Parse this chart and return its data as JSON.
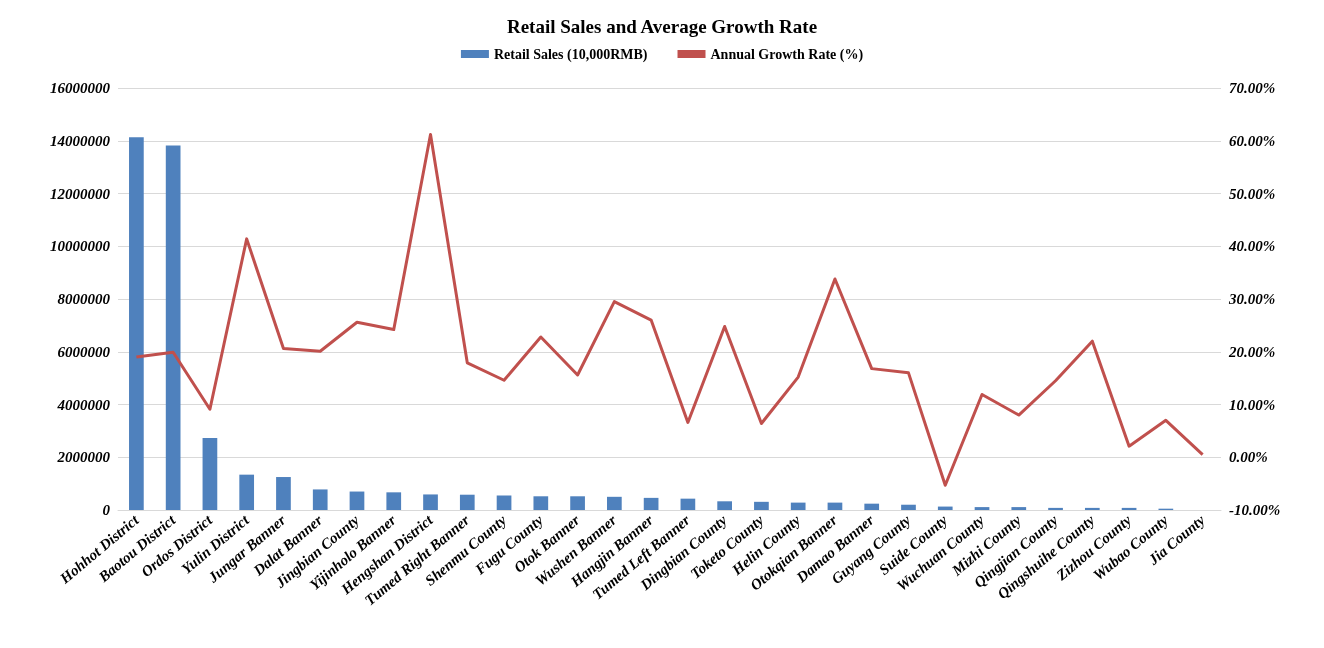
{
  "chart_data": {
    "type": "bar",
    "title": "Retail Sales and Average Growth Rate",
    "categories": [
      "Hohhot District",
      "Baotou District",
      "Ordos District",
      "Yulin District",
      "Jungar Banner",
      "Dalat Banner",
      "Jingbian County",
      "Yijinholo Banner",
      "Hengshan District",
      "Tumed Right Banner",
      "Shenmu County",
      "Fugu County",
      "Otok Banner",
      "Wushen Banner",
      "Hangjin Banner",
      "Tumed Left Banner",
      "Dingbian County",
      "Toketo County",
      "Helin County",
      "Otokqian Banner",
      "Damao Banner",
      "Guyang County",
      "Suide County",
      "Wuchuan County",
      "Mizhi County",
      "Qingjian County",
      "Qingshuihe County",
      "Zizhou County",
      "Wubao County",
      "Jia County"
    ],
    "series": [
      {
        "name": "Retail Sales (10,000RMB)",
        "color": "#4f81bd",
        "values": [
          14130000,
          13820000,
          2730000,
          1340000,
          1250000,
          780000,
          700000,
          670000,
          590000,
          580000,
          550000,
          520000,
          520000,
          500000,
          460000,
          430000,
          330000,
          310000,
          280000,
          280000,
          240000,
          200000,
          130000,
          110000,
          110000,
          80000,
          80000,
          80000,
          50000,
          null
        ]
      },
      {
        "name": "Annual Growth Rate (%)",
        "type": "line",
        "axis": "y2",
        "color": "#c0504d",
        "values": [
          19.0,
          19.9,
          9.1,
          41.4,
          20.6,
          20.1,
          25.6,
          24.2,
          61.2,
          17.9,
          14.6,
          22.8,
          15.6,
          29.5,
          26.0,
          6.6,
          24.8,
          6.4,
          15.2,
          33.8,
          16.8,
          16.0,
          -5.3,
          11.9,
          8.0,
          14.5,
          22.0,
          2.1,
          7.0,
          0.5
        ]
      }
    ],
    "ylim": [
      0,
      16000000
    ],
    "yticks": [
      0,
      2000000,
      4000000,
      6000000,
      8000000,
      10000000,
      12000000,
      14000000,
      16000000
    ],
    "y2lim": [
      -10,
      70
    ],
    "y2ticks": [
      {
        "value": -10,
        "label": "-10.00%"
      },
      {
        "value": 0,
        "label": "0.00%"
      },
      {
        "value": 10,
        "label": "10.00%"
      },
      {
        "value": 20,
        "label": "20.00%"
      },
      {
        "value": 30,
        "label": "30.00%"
      },
      {
        "value": 40,
        "label": "40.00%"
      },
      {
        "value": 50,
        "label": "50.00%"
      },
      {
        "value": 60,
        "label": "60.00%"
      },
      {
        "value": 70,
        "label": "70.00%"
      }
    ],
    "grid": "y",
    "legend": "top",
    "marker": "none",
    "line_style": "solid"
  }
}
